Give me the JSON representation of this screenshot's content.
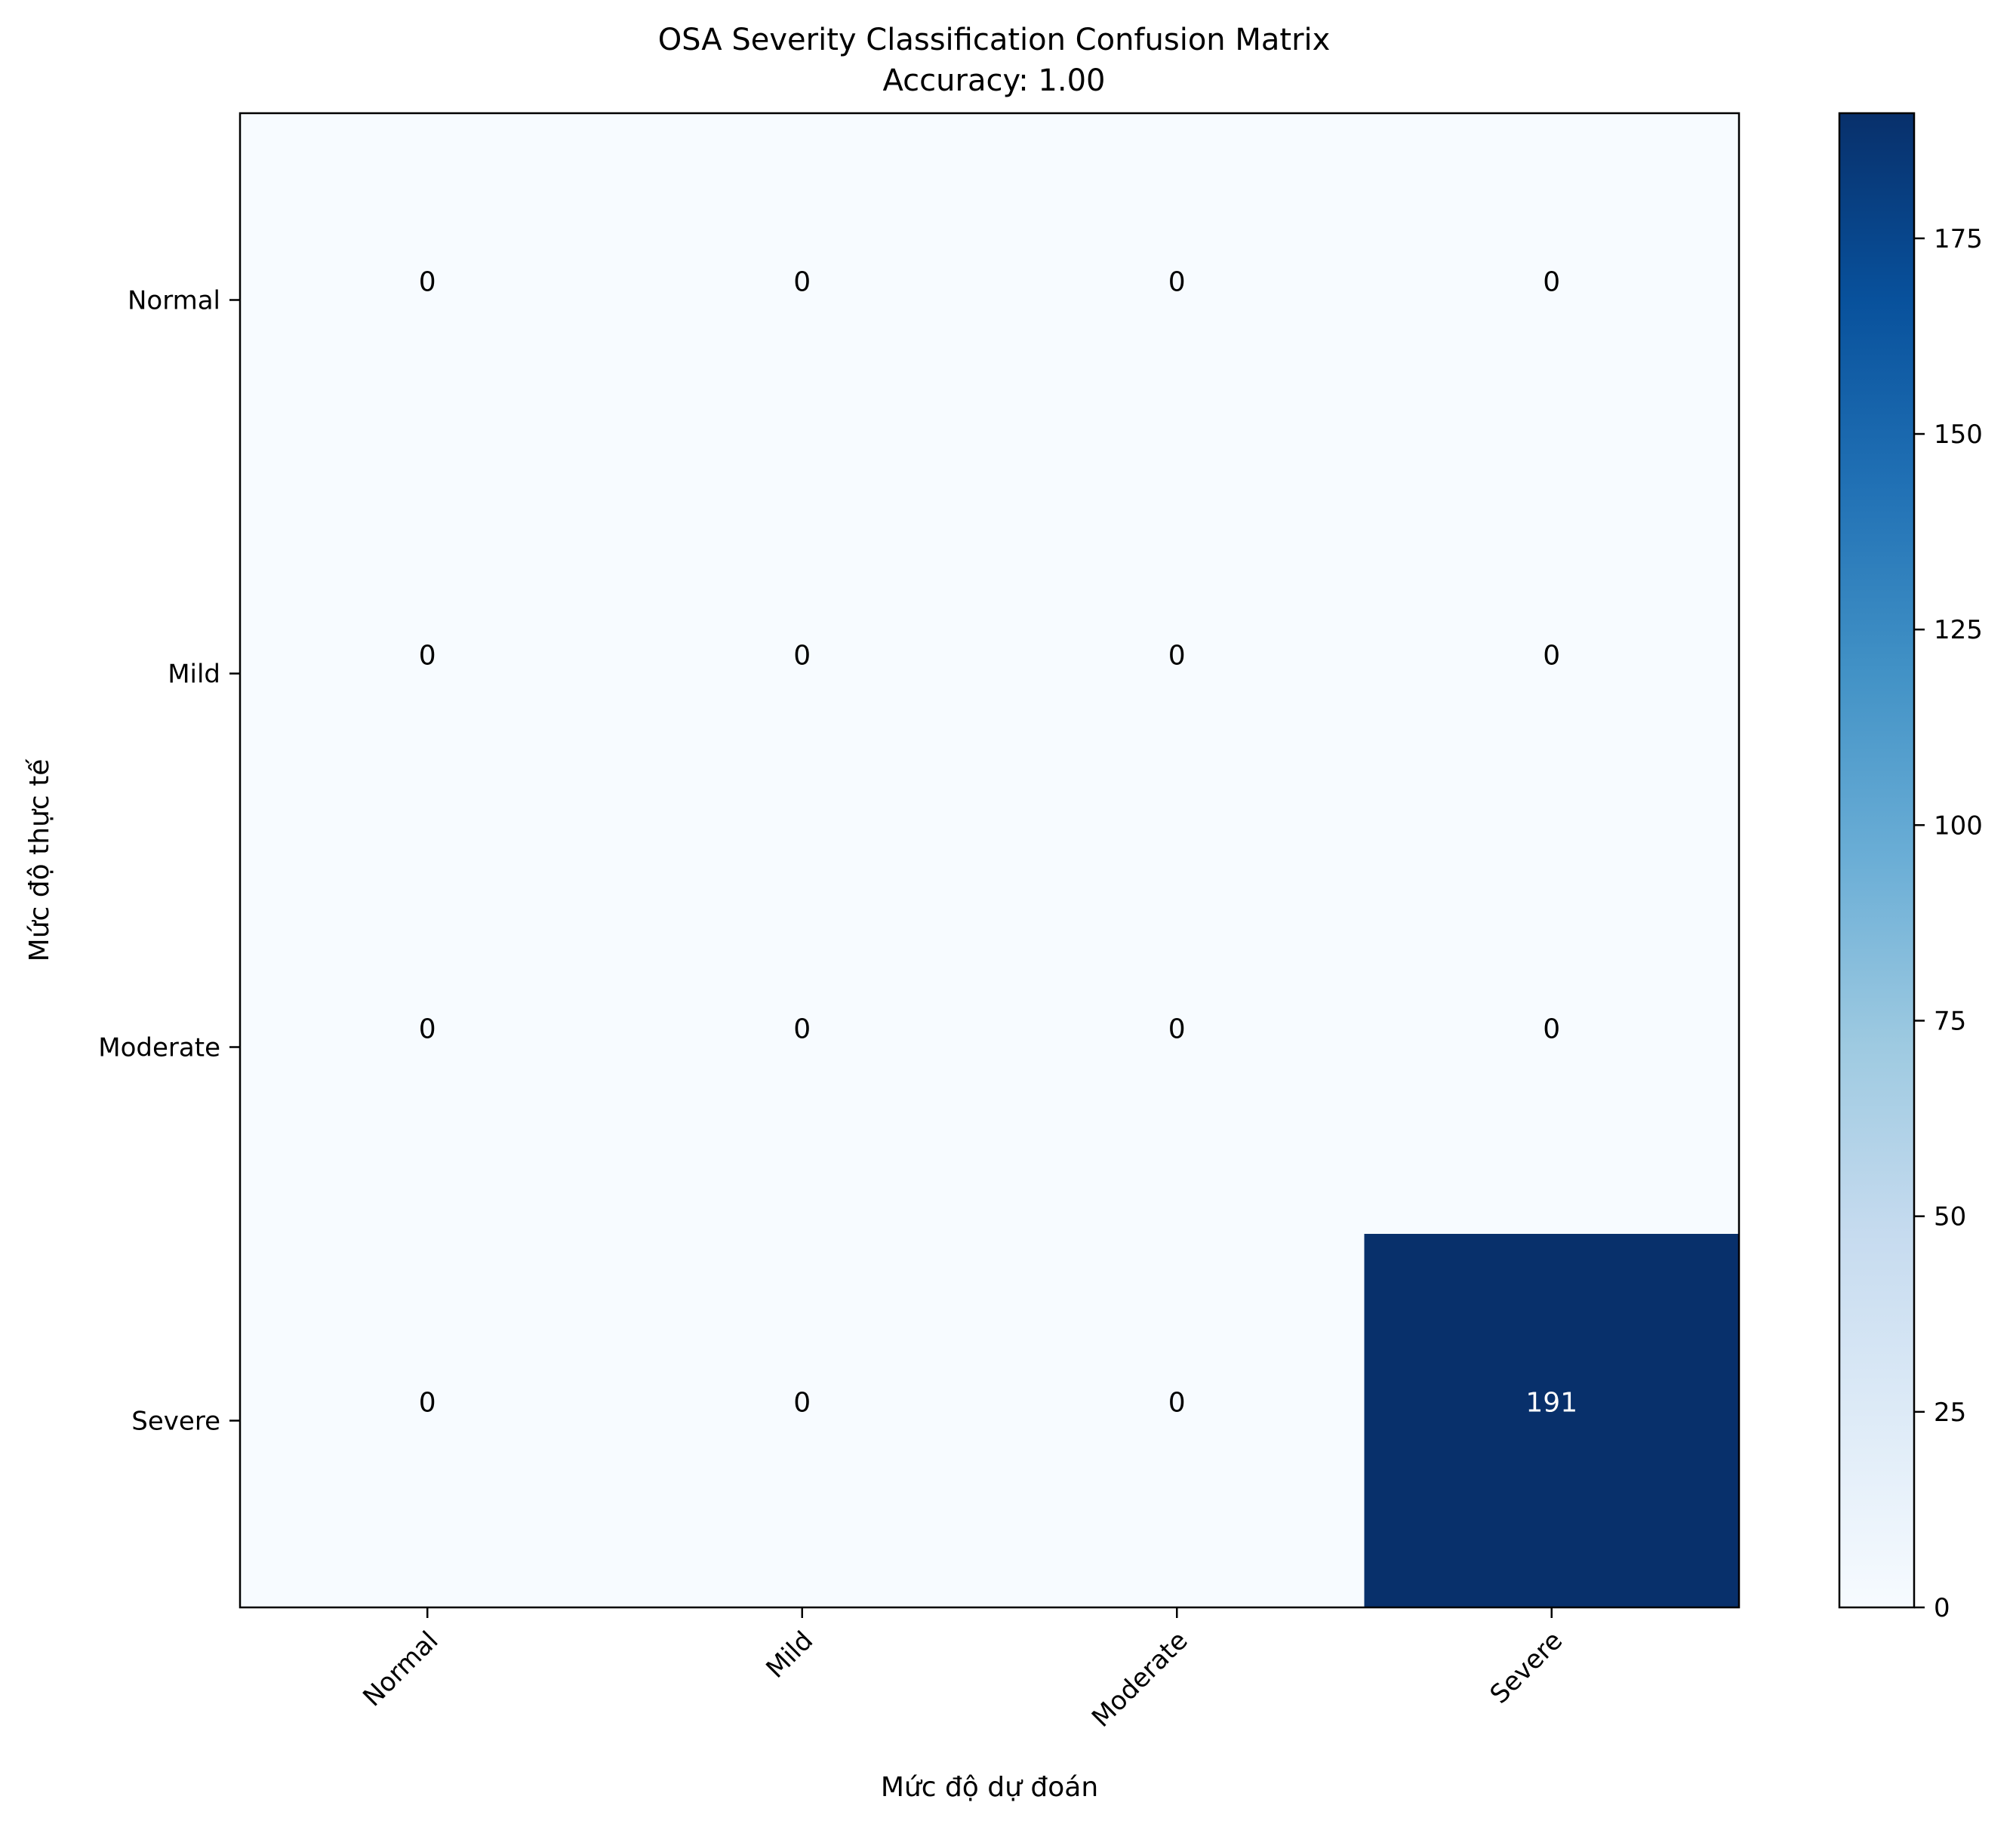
{
  "chart_data": {
    "type": "heatmap",
    "title": "OSA Severity Classification Confusion Matrix",
    "subtitle": "Accuracy: 1.00",
    "xlabel": "Mức độ dự đoán",
    "ylabel": "Mức độ thực tế",
    "x_categories": [
      "Normal",
      "Mild",
      "Moderate",
      "Severe"
    ],
    "y_categories": [
      "Normal",
      "Mild",
      "Moderate",
      "Severe"
    ],
    "values": [
      [
        0,
        0,
        0,
        0
      ],
      [
        0,
        0,
        0,
        0
      ],
      [
        0,
        0,
        0,
        0
      ],
      [
        0,
        0,
        0,
        191
      ]
    ],
    "colorbar": {
      "range": [
        0,
        191
      ],
      "ticks": [
        0,
        25,
        50,
        75,
        100,
        125,
        150,
        175
      ],
      "colormap": "Blues"
    },
    "colors": {
      "low": "#f7fbff",
      "high": "#08306b",
      "text_dark": "#000000",
      "text_light": "#ffffff"
    }
  }
}
